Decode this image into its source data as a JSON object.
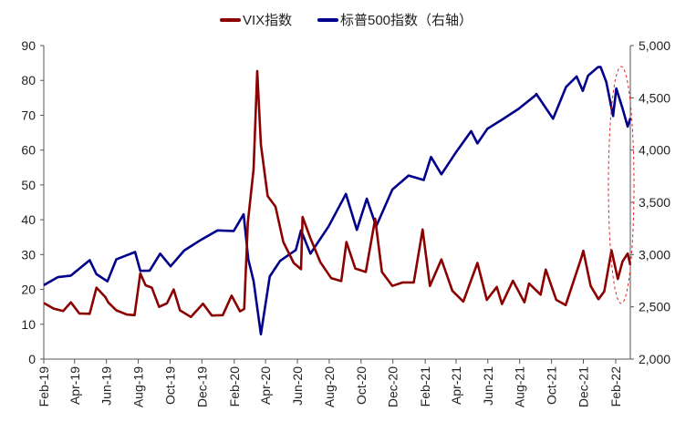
{
  "chart_data": {
    "type": "line",
    "title": "",
    "legend": {
      "placement": "top-center"
    },
    "series": [
      {
        "name": "VIX指数",
        "axis": "left",
        "color": "#8B0000"
      },
      {
        "name": "标普500指数（右轴）",
        "axis": "right",
        "color": "#00008B"
      }
    ],
    "x_tick_labels": [
      "Feb-19",
      "Apr-19",
      "Jun-19",
      "Aug-19",
      "Oct-19",
      "Dec-19",
      "Feb-20",
      "Apr-20",
      "Jun-20",
      "Aug-20",
      "Oct-20",
      "Dec-20",
      "Feb-21",
      "Apr-21",
      "Jun-21",
      "Aug-21",
      "Oct-21",
      "Dec-21",
      "Feb-22"
    ],
    "x_range": [
      "2019-02",
      "2022-03"
    ],
    "y_left": {
      "min": 0,
      "max": 90,
      "ticks": [
        "0",
        "10",
        "20",
        "30",
        "40",
        "50",
        "60",
        "70",
        "80",
        "90"
      ]
    },
    "y_right": {
      "min": 2000,
      "max": 5000,
      "ticks": [
        "2,000",
        "2,500",
        "3,000",
        "3,500",
        "4,000",
        "4,500",
        "5,000"
      ]
    },
    "vix_points": [
      [
        "2019-02-01",
        16.1
      ],
      [
        "2019-02-20",
        14.5
      ],
      [
        "2019-03-10",
        13.8
      ],
      [
        "2019-03-25",
        16.3
      ],
      [
        "2019-04-10",
        13.1
      ],
      [
        "2019-04-30",
        13.0
      ],
      [
        "2019-05-13",
        20.5
      ],
      [
        "2019-05-30",
        17.8
      ],
      [
        "2019-06-05",
        16.2
      ],
      [
        "2019-06-20",
        14.0
      ],
      [
        "2019-07-10",
        12.8
      ],
      [
        "2019-07-25",
        12.6
      ],
      [
        "2019-08-05",
        24.6
      ],
      [
        "2019-08-15",
        21.2
      ],
      [
        "2019-08-27",
        20.5
      ],
      [
        "2019-09-10",
        15.0
      ],
      [
        "2019-09-25",
        16.0
      ],
      [
        "2019-10-08",
        20.0
      ],
      [
        "2019-10-20",
        14.0
      ],
      [
        "2019-11-10",
        12.1
      ],
      [
        "2019-12-03",
        15.9
      ],
      [
        "2019-12-20",
        12.5
      ],
      [
        "2020-01-10",
        12.6
      ],
      [
        "2020-01-27",
        18.2
      ],
      [
        "2020-02-12",
        13.7
      ],
      [
        "2020-02-20",
        14.4
      ],
      [
        "2020-02-27",
        39.2
      ],
      [
        "2020-03-09",
        54.5
      ],
      [
        "2020-03-16",
        82.7
      ],
      [
        "2020-03-23",
        61.6
      ],
      [
        "2020-04-05",
        46.8
      ],
      [
        "2020-04-20",
        43.8
      ],
      [
        "2020-05-05",
        33.6
      ],
      [
        "2020-05-25",
        27.6
      ],
      [
        "2020-06-08",
        25.8
      ],
      [
        "2020-06-11",
        40.8
      ],
      [
        "2020-06-26",
        34.7
      ],
      [
        "2020-07-15",
        27.8
      ],
      [
        "2020-08-05",
        23.2
      ],
      [
        "2020-08-24",
        22.4
      ],
      [
        "2020-09-03",
        33.6
      ],
      [
        "2020-09-20",
        26.0
      ],
      [
        "2020-10-10",
        25.0
      ],
      [
        "2020-10-28",
        40.3
      ],
      [
        "2020-11-10",
        25.0
      ],
      [
        "2020-11-30",
        21.0
      ],
      [
        "2020-12-20",
        22.0
      ],
      [
        "2021-01-10",
        22.0
      ],
      [
        "2021-01-27",
        37.2
      ],
      [
        "2021-02-10",
        21.0
      ],
      [
        "2021-03-04",
        28.6
      ],
      [
        "2021-03-25",
        19.6
      ],
      [
        "2021-04-15",
        16.5
      ],
      [
        "2021-05-12",
        27.6
      ],
      [
        "2021-05-30",
        17.0
      ],
      [
        "2021-06-18",
        20.7
      ],
      [
        "2021-06-28",
        15.8
      ],
      [
        "2021-07-19",
        22.5
      ],
      [
        "2021-08-10",
        16.3
      ],
      [
        "2021-08-19",
        21.7
      ],
      [
        "2021-09-10",
        18.5
      ],
      [
        "2021-09-20",
        25.7
      ],
      [
        "2021-10-10",
        17.0
      ],
      [
        "2021-10-28",
        15.5
      ],
      [
        "2021-11-26",
        28.6
      ],
      [
        "2021-12-01",
        31.1
      ],
      [
        "2021-12-15",
        21.0
      ],
      [
        "2021-12-30",
        17.2
      ],
      [
        "2022-01-10",
        19.4
      ],
      [
        "2022-01-24",
        31.2
      ],
      [
        "2022-02-05",
        23.0
      ],
      [
        "2022-02-14",
        28.0
      ],
      [
        "2022-02-24",
        30.3
      ],
      [
        "2022-03-01",
        27.0
      ]
    ],
    "spx_points": [
      [
        "2019-02-01",
        2707
      ],
      [
        "2019-02-28",
        2784
      ],
      [
        "2019-03-25",
        2799
      ],
      [
        "2019-04-30",
        2946
      ],
      [
        "2019-05-13",
        2812
      ],
      [
        "2019-06-03",
        2744
      ],
      [
        "2019-06-20",
        2954
      ],
      [
        "2019-07-26",
        3025
      ],
      [
        "2019-08-05",
        2844
      ],
      [
        "2019-08-23",
        2847
      ],
      [
        "2019-09-12",
        3009
      ],
      [
        "2019-10-02",
        2888
      ],
      [
        "2019-10-28",
        3039
      ],
      [
        "2019-11-29",
        3141
      ],
      [
        "2019-12-31",
        3231
      ],
      [
        "2020-01-31",
        3225
      ],
      [
        "2020-02-19",
        3386
      ],
      [
        "2020-02-28",
        2954
      ],
      [
        "2020-03-09",
        2747
      ],
      [
        "2020-03-23",
        2237
      ],
      [
        "2020-04-09",
        2790
      ],
      [
        "2020-04-29",
        2940
      ],
      [
        "2020-05-29",
        3044
      ],
      [
        "2020-06-08",
        3232
      ],
      [
        "2020-06-26",
        3009
      ],
      [
        "2020-07-31",
        3271
      ],
      [
        "2020-09-02",
        3580
      ],
      [
        "2020-09-23",
        3237
      ],
      [
        "2020-10-12",
        3535
      ],
      [
        "2020-10-30",
        3270
      ],
      [
        "2020-11-30",
        3622
      ],
      [
        "2020-12-31",
        3756
      ],
      [
        "2021-01-29",
        3714
      ],
      [
        "2021-02-12",
        3934
      ],
      [
        "2021-03-04",
        3768
      ],
      [
        "2021-03-31",
        3973
      ],
      [
        "2021-04-30",
        4181
      ],
      [
        "2021-05-12",
        4063
      ],
      [
        "2021-05-31",
        4204
      ],
      [
        "2021-06-30",
        4297
      ],
      [
        "2021-07-30",
        4395
      ],
      [
        "2021-08-31",
        4523
      ],
      [
        "2021-09-02",
        4537
      ],
      [
        "2021-10-04",
        4300
      ],
      [
        "2021-10-29",
        4605
      ],
      [
        "2021-11-18",
        4704
      ],
      [
        "2021-11-30",
        4567
      ],
      [
        "2021-12-10",
        4712
      ],
      [
        "2021-12-29",
        4793
      ],
      [
        "2022-01-03",
        4796
      ],
      [
        "2022-01-14",
        4650
      ],
      [
        "2022-01-27",
        4326
      ],
      [
        "2022-02-02",
        4589
      ],
      [
        "2022-02-14",
        4401
      ],
      [
        "2022-02-24",
        4225
      ],
      [
        "2022-03-01",
        4306
      ]
    ]
  }
}
